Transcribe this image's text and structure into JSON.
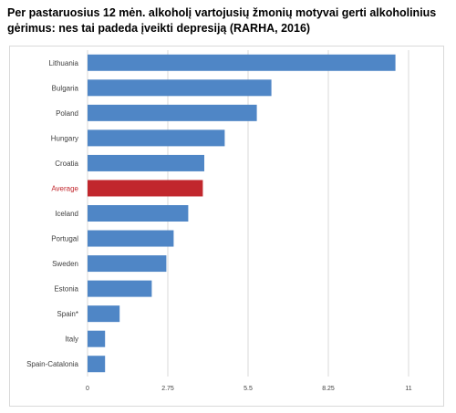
{
  "chart_data": {
    "type": "bar",
    "orientation": "horizontal",
    "title": "Per pastaruosius 12 mėn. alkoholį vartojusių žmonių motyvai gerti alkoholinius gėrimus: nes tai padeda įveikti depresiją (RARHA, 2016)",
    "categories": [
      "Lithuania",
      "Bulgaria",
      "Poland",
      "Hungary",
      "Croatia",
      "Average",
      "Iceland",
      "Portugal",
      "Sweden",
      "Estonia",
      "Spain*",
      "Italy",
      "Spain-Catalonia"
    ],
    "values": [
      10.55,
      6.3,
      5.8,
      4.7,
      4.0,
      3.95,
      3.45,
      2.95,
      2.7,
      2.2,
      1.1,
      0.6,
      0.6
    ],
    "highlight": "Average",
    "xlim": [
      0,
      11
    ],
    "xticks": [
      "0",
      "2.75",
      "5.5",
      "8.25",
      "11"
    ],
    "grid": true,
    "colors": {
      "bar": "#4f86c6",
      "highlight": "#c1272d",
      "highlight_label": "#c1272d",
      "grid": "#d9d9d9"
    }
  }
}
